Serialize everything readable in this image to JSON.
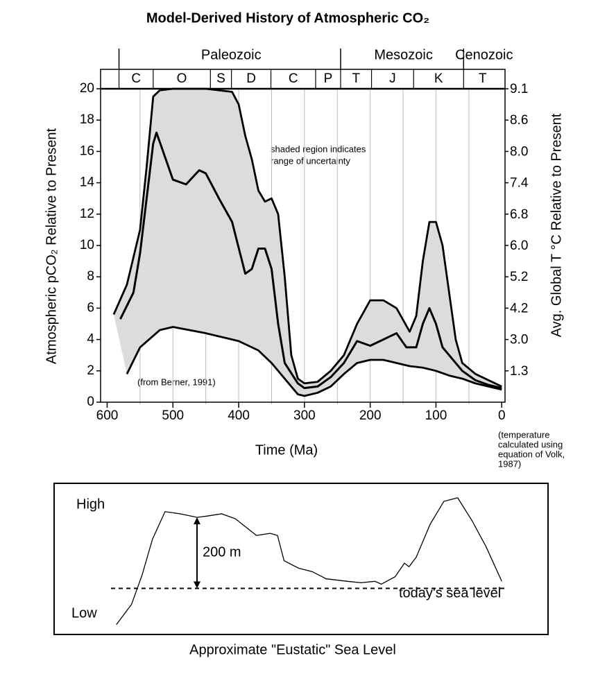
{
  "chart_data": [
    {
      "type": "line",
      "title": "Model-Derived History of Atmospheric CO₂",
      "x_label": "Time (Ma)",
      "y_label": "Atmospheric pCO₂ Relative to Present",
      "y2_label": "Avg. Global T °C Relative to Present",
      "xlim": [
        610,
        -5
      ],
      "ylim": [
        0,
        20
      ],
      "xticks": [
        600,
        500,
        400,
        300,
        200,
        100,
        0
      ],
      "xgrid": [
        550,
        500,
        450,
        400,
        350,
        300,
        250,
        200,
        150,
        100,
        50
      ],
      "yticks": [
        0,
        2,
        4,
        6,
        8,
        10,
        12,
        14,
        16,
        18,
        20
      ],
      "y2_labels": [
        null,
        "1.3",
        "3.0",
        "4.2",
        "5.2",
        "6.0",
        "6.8",
        "7.4",
        "8.0",
        "8.6",
        "9.1"
      ],
      "shade_color": "#dcdcdc",
      "eras": [
        {
          "name": "Paleozoic",
          "start": 582,
          "end": 245
        },
        {
          "name": "Mesozoic",
          "start": 245,
          "end": 58
        },
        {
          "name": "Cenozoic",
          "start": 58,
          "end": 0
        }
      ],
      "periods": [
        {
          "name": "C",
          "start": 582,
          "end": 530
        },
        {
          "name": "O",
          "start": 530,
          "end": 443
        },
        {
          "name": "S",
          "start": 443,
          "end": 411
        },
        {
          "name": "D",
          "start": 411,
          "end": 351
        },
        {
          "name": "C",
          "start": 351,
          "end": 283
        },
        {
          "name": "P",
          "start": 283,
          "end": 245
        },
        {
          "name": "T",
          "start": 245,
          "end": 198
        },
        {
          "name": "J",
          "start": 198,
          "end": 134
        },
        {
          "name": "K",
          "start": 134,
          "end": 58
        },
        {
          "name": "T",
          "start": 58,
          "end": 0
        }
      ],
      "annotations": {
        "shading": [
          "shaded region indicates",
          "range of uncertainty"
        ],
        "source": "(from Berner, 1991)",
        "temperature": [
          "(temperature",
          "calculated using",
          "equation of Volk,",
          "1987)"
        ]
      },
      "series": [
        {
          "color": "#000000",
          "x": [
            590,
            570,
            550,
            540,
            530,
            520,
            500,
            450,
            410,
            400,
            390,
            380,
            370,
            360,
            350,
            340,
            330,
            320,
            310,
            300,
            280,
            260,
            240,
            220,
            200,
            180,
            160,
            140,
            130,
            120,
            110,
            100,
            90,
            80,
            70,
            60,
            40,
            20,
            0
          ],
          "values": [
            5.6,
            7.5,
            11,
            15,
            19.5,
            19.9,
            20,
            20,
            19.8,
            19,
            17,
            15.5,
            13.5,
            12.8,
            13,
            12,
            8,
            3,
            1.5,
            1.2,
            1.3,
            2,
            3,
            5,
            6.5,
            6.5,
            6,
            4.5,
            5.5,
            9,
            11.5,
            11.5,
            10,
            7,
            4,
            2.5,
            1.8,
            1.4,
            1.0
          ]
        },
        {
          "color": "#000000",
          "x": [
            580,
            560,
            550,
            540,
            530,
            525,
            515,
            500,
            480,
            460,
            450,
            430,
            410,
            390,
            380,
            370,
            360,
            350,
            340,
            330,
            310,
            300,
            280,
            260,
            240,
            220,
            200,
            180,
            160,
            145,
            130,
            120,
            110,
            100,
            90,
            80,
            60,
            40,
            20,
            0
          ],
          "values": [
            5.3,
            7,
            9.5,
            13,
            16.5,
            17.2,
            16,
            14.2,
            13.9,
            14.8,
            14.6,
            13,
            11.5,
            8.2,
            8.5,
            9.8,
            9.8,
            8.5,
            5,
            2.5,
            1.2,
            0.9,
            1,
            1.6,
            2.5,
            3.9,
            3.6,
            4,
            4.4,
            3.5,
            3.5,
            5,
            6,
            5,
            3.5,
            3,
            2,
            1.4,
            1.1,
            0.9
          ]
        },
        {
          "color": "#000000",
          "x": [
            570,
            550,
            520,
            500,
            450,
            400,
            370,
            350,
            330,
            310,
            300,
            280,
            260,
            240,
            220,
            200,
            180,
            160,
            140,
            120,
            100,
            80,
            60,
            40,
            20,
            0
          ],
          "values": [
            1.8,
            3.5,
            4.6,
            4.8,
            4.4,
            3.9,
            3.3,
            2.5,
            1.5,
            0.5,
            0.4,
            0.6,
            1,
            1.8,
            2.5,
            2.7,
            2.7,
            2.5,
            2.3,
            2.2,
            2,
            1.7,
            1.5,
            1.2,
            1,
            0.8
          ]
        }
      ]
    },
    {
      "type": "line",
      "title": "Approximate \"Eustatic\" Sea Level",
      "high_label": "High",
      "low_label": "Low",
      "level_label": "today's sea level",
      "arrow_value": 200,
      "arrow_label": "200 m",
      "xlim": [
        610,
        -5
      ],
      "ylim": [
        -120,
        290
      ],
      "series": [
        {
          "color": "#000000",
          "x": [
            586,
            563,
            547,
            531,
            512,
            489,
            463,
            447,
            426,
            405,
            373,
            352,
            341,
            331,
            309,
            288,
            267,
            235,
            214,
            193,
            183,
            162,
            148,
            141,
            130,
            109,
            88,
            67,
            45,
            24,
            0
          ],
          "values": [
            -102,
            -45,
            37,
            139,
            216,
            210,
            200,
            204,
            210,
            196,
            149,
            155,
            149,
            78,
            57,
            47,
            27,
            20,
            16,
            20,
            12,
            33,
            71,
            61,
            88,
            180,
            245,
            255,
            190,
            118,
            20
          ]
        }
      ]
    }
  ]
}
